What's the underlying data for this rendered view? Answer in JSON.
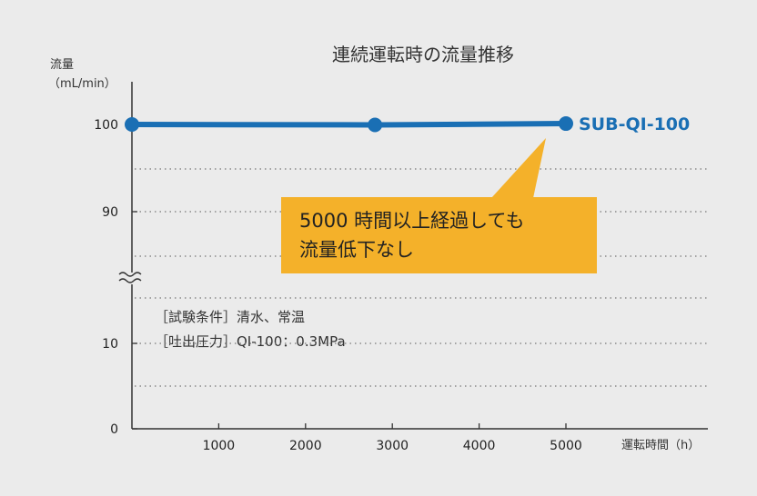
{
  "chart_data": {
    "type": "line",
    "title": "連続運転時の流量推移",
    "ylabel_line1": "流量",
    "ylabel_line2": "（mL/min）",
    "xlabel": "運転時間（h）",
    "x_ticks": [
      "1000",
      "2000",
      "3000",
      "4000",
      "5000"
    ],
    "y_ticks_upper": [
      "100",
      "90"
    ],
    "y_ticks_lower": [
      "10",
      "0"
    ],
    "axis_break": true,
    "ylim_upper": [
      85,
      100
    ],
    "ylim_lower": [
      0,
      17
    ],
    "xlim": [
      0,
      5000
    ],
    "grid": "horizontal dotted",
    "series": [
      {
        "name": "SUB-QI-100",
        "color": "#1a6fb4",
        "x": [
          0,
          2800,
          5000
        ],
        "y": [
          100,
          99.95,
          100.1
        ]
      }
    ],
    "annotations": {
      "callout_line1": "5000 時間以上経過しても",
      "callout_line2": "流量低下なし",
      "conditions_line1": "［試験条件］清水、常温",
      "conditions_line2": "［吐出圧力］QI-100：0.3MPa"
    }
  }
}
